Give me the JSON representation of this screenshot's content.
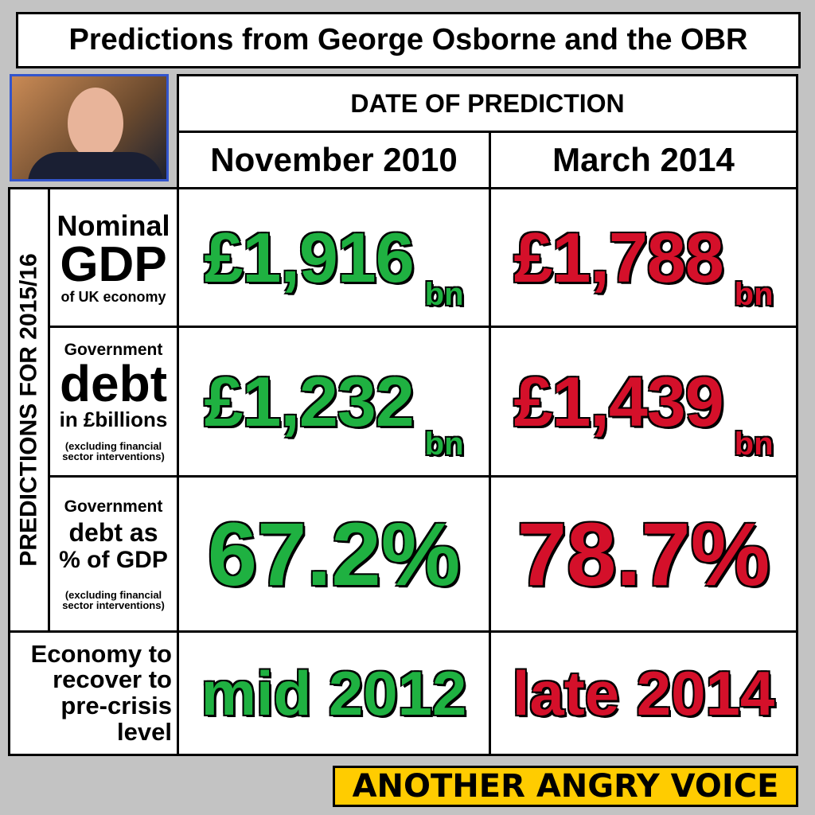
{
  "title": "Predictions from George Osborne and the OBR",
  "header": {
    "caption": "DATE OF PREDICTION",
    "columns": [
      "November 2010",
      "March 2014"
    ]
  },
  "side_label": "PREDICTIONS FOR 2015/16",
  "rows": [
    {
      "label": [
        "Nominal",
        "GDP",
        "of UK economy"
      ],
      "values": [
        {
          "amount": "£1,916",
          "unit": "bn"
        },
        {
          "amount": "£1,788",
          "unit": "bn"
        }
      ]
    },
    {
      "label": [
        "Government",
        "debt",
        "in £billions",
        "(excluding financial sector interventions)"
      ],
      "values": [
        {
          "amount": "£1,232",
          "unit": "bn"
        },
        {
          "amount": "£1,439",
          "unit": "bn"
        }
      ]
    },
    {
      "label": [
        "Government",
        "debt as",
        "% of GDP",
        "(excluding financial sector interventions)"
      ],
      "values": [
        {
          "amount": "67.2%"
        },
        {
          "amount": "78.7%"
        }
      ]
    },
    {
      "label": [
        "Economy to recover to pre-crisis level"
      ],
      "values": [
        {
          "amount": "mid 2012"
        },
        {
          "amount": "late 2014"
        }
      ]
    }
  ],
  "footer": "ANOTHER ANGRY VOICE"
}
